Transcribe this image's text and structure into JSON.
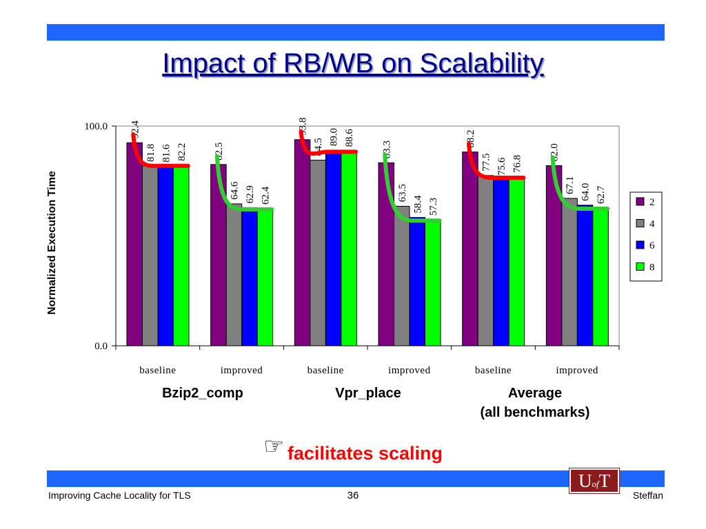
{
  "slide": {
    "title": "Impact of RB/WB on Scalability",
    "note_text": "facilitates scaling",
    "note_icon": "pointing-hand-icon",
    "footer_left": "Improving Cache Locality for TLS",
    "footer_page": "36",
    "footer_right": "Steffan",
    "logo_text": "UofT",
    "band_color": "#1f66ff",
    "title_color": "#00008b",
    "note_color": "#ff0000"
  },
  "chart_data": {
    "type": "bar",
    "ylabel": "Normalized Execution Time",
    "ylim": [
      0,
      100
    ],
    "yticks": [
      "0.0",
      "100.0"
    ],
    "categories": [
      "baseline",
      "improved",
      "baseline",
      "improved",
      "baseline",
      "improved"
    ],
    "groups": [
      "Bzip2_comp",
      "Vpr_place",
      "Average\n(all benchmarks)"
    ],
    "series": [
      {
        "name": "2",
        "color": "#800080",
        "values": [
          92.4,
          82.5,
          93.8,
          83.3,
          88.2,
          82.0
        ]
      },
      {
        "name": "4",
        "color": "#808080",
        "values": [
          81.8,
          64.6,
          84.5,
          63.5,
          77.5,
          67.1
        ]
      },
      {
        "name": "6",
        "color": "#0000ff",
        "values": [
          81.6,
          62.9,
          89.0,
          58.4,
          75.6,
          64.0
        ]
      },
      {
        "name": "8",
        "color": "#00ff00",
        "values": [
          82.2,
          62.4,
          88.6,
          57.3,
          76.8,
          62.7
        ]
      }
    ],
    "trend_colors": {
      "baseline": "#ff0000",
      "improved": "#33cc33"
    },
    "legend": "right",
    "grid": false
  }
}
